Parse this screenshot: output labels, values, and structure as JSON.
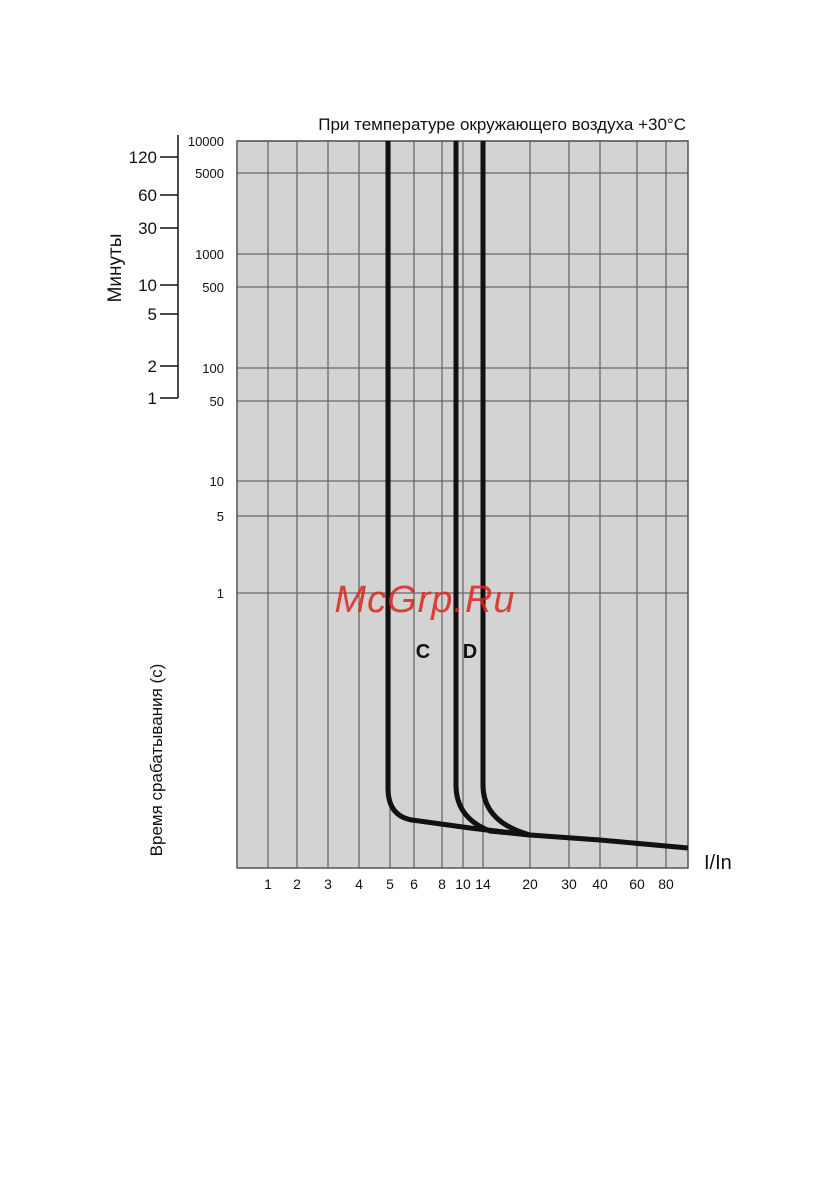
{
  "chart_data": {
    "type": "line",
    "title": "При температуре окружающего воздуха +30°C",
    "xlabel": "I/In",
    "ylabel": "Время срабатывания (с)",
    "minutes_label": "Минуты",
    "x_ticks": [
      "1",
      "2",
      "3",
      "4",
      "5",
      "6",
      "8",
      "10",
      "14",
      "20",
      "30",
      "40",
      "60",
      "80"
    ],
    "y_ticks_seconds": [
      "10000",
      "5000",
      "1000",
      "500",
      "100",
      "50",
      "10",
      "5",
      "1"
    ],
    "y_ticks_minutes": [
      "120",
      "60",
      "30",
      "10",
      "5",
      "2",
      "1"
    ],
    "grid": true,
    "series": [
      {
        "name": "C",
        "trip_multiple": 5
      },
      {
        "name": "D",
        "trip_multiple": 10
      },
      {
        "name": "",
        "trip_multiple": 14
      }
    ],
    "colors": {
      "background": "#d3d3d3",
      "grid": "#6a6a6a",
      "curve": "#111111"
    }
  },
  "watermark": "McGrp.Ru"
}
